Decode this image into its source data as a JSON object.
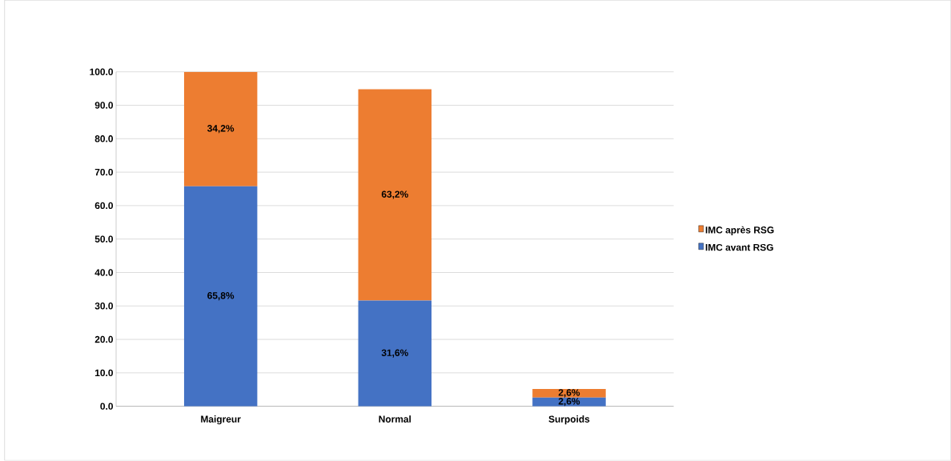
{
  "chart_data": {
    "type": "bar",
    "stacked": true,
    "categories": [
      "Maigreur",
      "Normal",
      "Surpoids"
    ],
    "series": [
      {
        "name": "IMC avant RSG",
        "color": "#4472c4",
        "values": [
          65.8,
          31.6,
          2.6
        ],
        "value_labels": [
          "65,8%",
          "31,6%",
          "2,6%"
        ]
      },
      {
        "name": "IMC après RSG",
        "color": "#ed7d31",
        "values": [
          34.2,
          63.2,
          2.6
        ],
        "value_labels": [
          "34,2%",
          "63,2%",
          "2,6%"
        ]
      }
    ],
    "ylim": [
      0,
      100
    ],
    "yticks": [
      {
        "value": 0,
        "label": "0.0"
      },
      {
        "value": 10,
        "label": "10.0"
      },
      {
        "value": 20,
        "label": "20.0"
      },
      {
        "value": 30,
        "label": "30.0"
      },
      {
        "value": 40,
        "label": "40.0"
      },
      {
        "value": 50,
        "label": "50.0"
      },
      {
        "value": 60,
        "label": "60.0"
      },
      {
        "value": 70,
        "label": "70.0"
      },
      {
        "value": 80,
        "label": "80.0"
      },
      {
        "value": 90,
        "label": "90.0"
      },
      {
        "value": 100,
        "label": "100.0"
      }
    ],
    "grid": "y",
    "legend": "right"
  }
}
